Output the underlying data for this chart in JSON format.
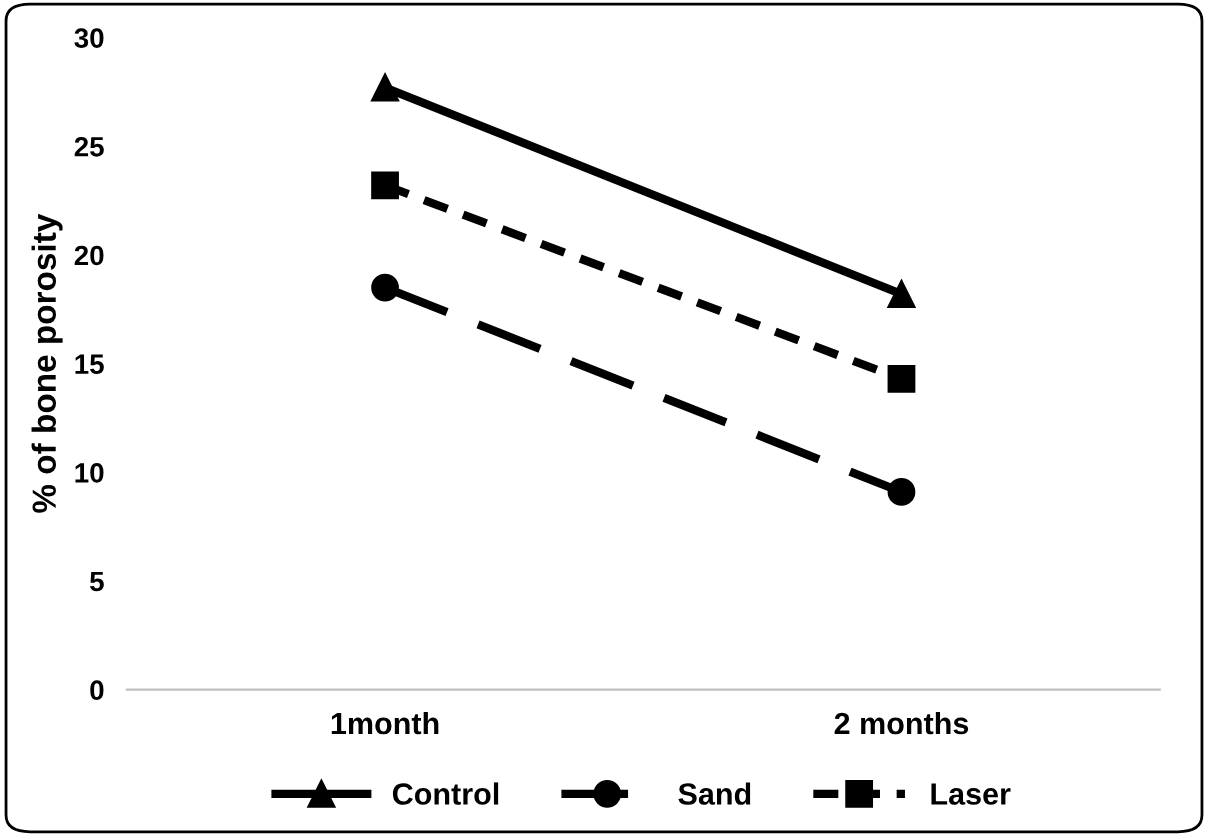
{
  "chart_data": {
    "type": "line",
    "ylabel": "% of bone porosity",
    "categories": [
      "1month",
      "2 months"
    ],
    "series": [
      {
        "name": "Control",
        "color": "#000000",
        "values": [
          27.7,
          18.2
        ],
        "marker": "triangle",
        "line_style": "solid"
      },
      {
        "name": "Sand",
        "color": "#000000",
        "values": [
          18.5,
          9.1
        ],
        "marker": "circle",
        "line_style": "dashed"
      },
      {
        "name": "Laser",
        "color": "#000000",
        "values": [
          23.2,
          14.3
        ],
        "marker": "square",
        "line_style": "dotted"
      }
    ],
    "ylim": [
      0,
      30
    ],
    "yticks": [
      0,
      5,
      10,
      15,
      20,
      25,
      30
    ],
    "grid": false,
    "legend": "bottom"
  }
}
